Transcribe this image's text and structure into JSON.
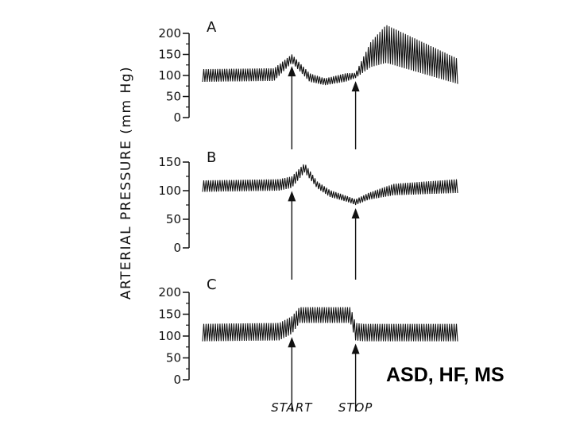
{
  "chart_data": {
    "type": "line",
    "ylabel": "ARTERIAL  PRESSURE  (mm Hg)",
    "markers": [
      {
        "name": "START",
        "x": 0.35
      },
      {
        "name": "STOP",
        "x": 0.6
      }
    ],
    "panels": [
      {
        "label": "A",
        "ticks": [
          0,
          50,
          100,
          150,
          200
        ],
        "ylim": [
          0,
          200
        ],
        "trace": {
          "x": [
            0.0,
            0.28,
            0.35,
            0.42,
            0.48,
            0.56,
            0.6,
            0.66,
            0.72,
            1.0
          ],
          "mean": [
            100,
            102,
            140,
            95,
            85,
            95,
            100,
            150,
            175,
            110
          ],
          "amp": [
            15,
            15,
            10,
            10,
            8,
            10,
            6,
            30,
            45,
            30
          ]
        }
      },
      {
        "label": "B",
        "ticks": [
          0,
          50,
          100,
          150
        ],
        "ylim": [
          0,
          150
        ],
        "trace": {
          "x": [
            0.0,
            0.3,
            0.35,
            0.4,
            0.45,
            0.5,
            0.57,
            0.6,
            0.65,
            0.75,
            1.0
          ],
          "mean": [
            108,
            110,
            115,
            140,
            110,
            95,
            85,
            80,
            90,
            102,
            108
          ],
          "amp": [
            10,
            10,
            10,
            8,
            6,
            6,
            5,
            5,
            6,
            10,
            12
          ]
        }
      },
      {
        "label": "C",
        "ticks": [
          0,
          50,
          100,
          150,
          200
        ],
        "ylim": [
          0,
          200
        ],
        "trace": {
          "x": [
            0.0,
            0.3,
            0.35,
            0.38,
            0.58,
            0.6,
            0.63,
            1.0
          ],
          "mean": [
            108,
            110,
            125,
            148,
            148,
            110,
            108,
            108
          ],
          "amp": [
            20,
            20,
            20,
            18,
            18,
            20,
            20,
            20
          ]
        }
      }
    ]
  },
  "caption": "ASD, HF, MS"
}
